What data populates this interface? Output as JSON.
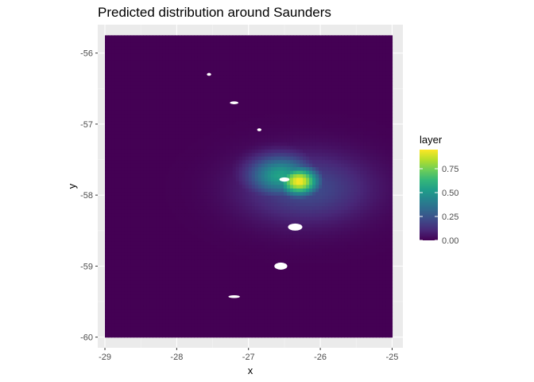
{
  "chart_data": {
    "type": "heatmap",
    "title": "Predicted distribution around Saunders",
    "xlabel": "x",
    "ylabel": "y",
    "xlim": [
      -29.1,
      -24.85
    ],
    "ylim": [
      -60.15,
      -55.6
    ],
    "x_ticks": [
      -29,
      -28,
      -27,
      -26,
      -25
    ],
    "y_ticks": [
      -56,
      -57,
      -58,
      -59,
      -60
    ],
    "x_tick_labels": [
      "-29",
      "-28",
      "-27",
      "-26",
      "-25"
    ],
    "y_tick_labels": [
      "-56",
      "-57",
      "-58",
      "-59",
      "-60"
    ],
    "grid": true,
    "raster_extent": {
      "x": [
        -29.0,
        -25.0
      ],
      "y": [
        -60.0,
        -55.75
      ]
    },
    "background_value": 0.0,
    "hotspots": [
      {
        "x": -26.3,
        "y": -57.8,
        "peak": 0.95,
        "sx": 0.35,
        "sy": 0.25
      },
      {
        "x": -26.55,
        "y": -57.72,
        "peak": 0.55,
        "sx": 0.55,
        "sy": 0.35
      },
      {
        "x": -26.2,
        "y": -57.9,
        "peak": 0.22,
        "sx": 1.1,
        "sy": 0.6
      }
    ],
    "missing_regions": [
      {
        "x": -27.2,
        "y": -56.7,
        "rx": 0.06,
        "ry": 0.02
      },
      {
        "x": -27.55,
        "y": -56.3,
        "rx": 0.03,
        "ry": 0.02
      },
      {
        "x": -26.5,
        "y": -57.78,
        "rx": 0.07,
        "ry": 0.03
      },
      {
        "x": -26.35,
        "y": -58.45,
        "rx": 0.1,
        "ry": 0.05
      },
      {
        "x": -26.55,
        "y": -59.0,
        "rx": 0.09,
        "ry": 0.05
      },
      {
        "x": -27.2,
        "y": -59.43,
        "rx": 0.08,
        "ry": 0.02
      },
      {
        "x": -26.85,
        "y": -57.08,
        "rx": 0.03,
        "ry": 0.02
      }
    ],
    "legend": {
      "title": "layer",
      "placement": "right",
      "range": [
        0.0,
        0.95
      ],
      "ticks": [
        0.0,
        0.25,
        0.5,
        0.75
      ],
      "tick_labels": [
        "0.00",
        "0.25",
        "0.50",
        "0.75"
      ],
      "colormap": "viridis"
    },
    "colors": {
      "panel_background": "#ebebeb",
      "grid_major": "#ffffff",
      "grid_minor": "#f5f5f5",
      "viridis_stops": [
        "#440154",
        "#482878",
        "#3e4989",
        "#31688e",
        "#26828e",
        "#1f9e89",
        "#35b779",
        "#6ece58",
        "#b5de2b",
        "#fde725"
      ]
    }
  }
}
